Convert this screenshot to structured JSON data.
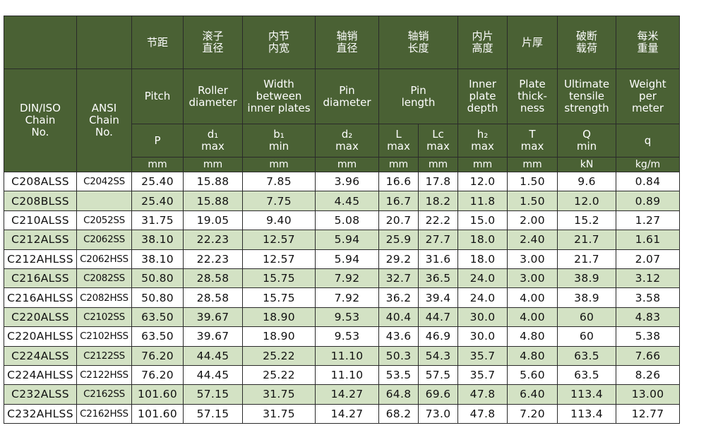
{
  "header": {
    "chain_iso": "DIN/ISO\nChain\nNo.",
    "chain_ansi": "ANSI\nChain\nNo.",
    "chinese": [
      "节距",
      "滚子\n直径",
      "内节\n内宽",
      "轴销\n直径",
      "轴销\n长度",
      "内片\n高度",
      "片厚",
      "破断\n载荷",
      "每米\n重量"
    ],
    "english": [
      "Pitch",
      "Roller\ndiameter",
      "Width\nbetween\ninner plates",
      "Pin\ndiameter",
      "Pin\nlength",
      "Inner\nplate\ndepth",
      "Plate\nthick-\nness",
      "Ultimate\ntensile\nstrength",
      "Weight\nper\nmeter"
    ],
    "symbols": [
      "P",
      "d₁\nmax",
      "b₁\nmin",
      "d₂\nmax",
      "L\nmax",
      "Lc\nmax",
      "h₂\nmax",
      "T\nmax",
      "Q\nmin",
      "q"
    ],
    "units": [
      "mm",
      "mm",
      "mm",
      "mm",
      "mm",
      "mm",
      "mm",
      "mm",
      "kN",
      "kg/m"
    ]
  },
  "table": {
    "rows": [
      [
        "C208ALSS",
        "C2042SS",
        "25.40",
        "15.88",
        "7.85",
        "3.96",
        "16.6",
        "17.8",
        "12.0",
        "1.50",
        "9.6",
        "0.84"
      ],
      [
        "C208BLSS",
        null,
        "25.40",
        "15.88",
        "7.75",
        "4.45",
        "16.7",
        "18.2",
        "11.8",
        "1.50",
        "12.0",
        "0.89"
      ],
      [
        "C210ALSS",
        "C2052SS",
        "31.75",
        "19.05",
        "9.40",
        "5.08",
        "20.7",
        "22.2",
        "15.0",
        "2.00",
        "15.2",
        "1.27"
      ],
      [
        "C212ALSS",
        "C2062SS",
        "38.10",
        "22.23",
        "12.57",
        "5.94",
        "25.9",
        "27.7",
        "18.0",
        "2.40",
        "21.7",
        "1.61"
      ],
      [
        "C212AHLSS",
        "C2062HSS",
        "38.10",
        "22.23",
        "12.57",
        "5.94",
        "29.2",
        "31.6",
        "18.0",
        "3.00",
        "21.7",
        "2.07"
      ],
      [
        "C216ALSS",
        "C2082SS",
        "50.80",
        "28.58",
        "15.75",
        "7.92",
        "32.7",
        "36.5",
        "24.0",
        "3.00",
        "38.9",
        "3.12"
      ],
      [
        "C216AHLSS",
        "C2082HSS",
        "50.80",
        "28.58",
        "15.75",
        "7.92",
        "36.2",
        "39.4",
        "24.0",
        "4.00",
        "38.9",
        "3.58"
      ],
      [
        "C220ALSS",
        "C2102SS",
        "63.50",
        "39.67",
        "18.90",
        "9.53",
        "40.4",
        "44.7",
        "30.0",
        "4.00",
        "60",
        "4.83"
      ],
      [
        "C220AHLSS",
        "C2102HSS",
        "63.50",
        "39.67",
        "18.90",
        "9.53",
        "43.6",
        "46.9",
        "30.0",
        "4.80",
        "60",
        "5.38"
      ],
      [
        "C224ALSS",
        "C2122SS",
        "76.20",
        "44.45",
        "25.22",
        "11.10",
        "50.3",
        "54.3",
        "35.7",
        "4.80",
        "63.5",
        "7.66"
      ],
      [
        "C224AHLSS",
        "C2122HSS",
        "76.20",
        "44.45",
        "25.22",
        "11.10",
        "53.5",
        "57.5",
        "35.7",
        "5.60",
        "63.5",
        "8.26"
      ],
      [
        "C232ALSS",
        "C2162SS",
        "101.60",
        "57.15",
        "31.75",
        "14.27",
        "64.8",
        "69.6",
        "47.8",
        "6.40",
        "113.4",
        "13.00"
      ],
      [
        "C232AHLSS",
        "C2162HSS",
        "101.60",
        "57.15",
        "31.75",
        "14.27",
        "68.2",
        "73.0",
        "47.8",
        "7.20",
        "113.4",
        "12.77"
      ]
    ]
  }
}
